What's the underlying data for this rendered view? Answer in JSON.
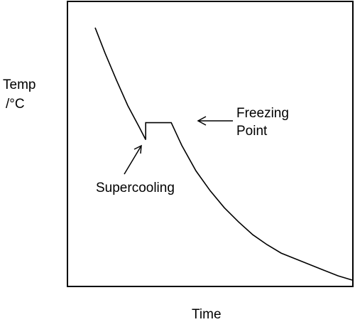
{
  "chart_data": {
    "type": "line",
    "title": "",
    "xlabel": "Time",
    "ylabel_line1": "Temp",
    "ylabel_line2": "/°C",
    "xlim": [
      0,
      100
    ],
    "ylim": [
      0,
      100
    ],
    "grid": false,
    "series": [
      {
        "name": "",
        "points": [
          [
            9.5,
            91.0
          ],
          [
            13,
            82.0
          ],
          [
            17,
            72.5
          ],
          [
            21,
            63.5
          ],
          [
            25,
            56.0
          ],
          [
            27.3,
            51.5
          ],
          [
            27.3,
            57.5
          ],
          [
            29,
            57.5
          ],
          [
            33,
            57.5
          ],
          [
            36.3,
            57.5
          ],
          [
            40,
            49.5
          ],
          [
            45,
            40.5
          ],
          [
            50,
            33.5
          ],
          [
            55,
            27.5
          ],
          [
            60,
            22.5
          ],
          [
            65,
            18.0
          ],
          [
            70,
            14.5
          ],
          [
            75,
            11.5
          ],
          [
            80,
            9.5
          ],
          [
            85,
            7.5
          ],
          [
            90,
            5.5
          ],
          [
            95,
            3.5
          ],
          [
            100,
            2.0
          ]
        ]
      }
    ],
    "annotations": [
      {
        "text": "Supercooling",
        "point": [
          27.3,
          51.5
        ]
      },
      {
        "text_line1": "Freezing",
        "text_line2": "Point",
        "point": [
          36.3,
          57.5
        ]
      }
    ]
  }
}
